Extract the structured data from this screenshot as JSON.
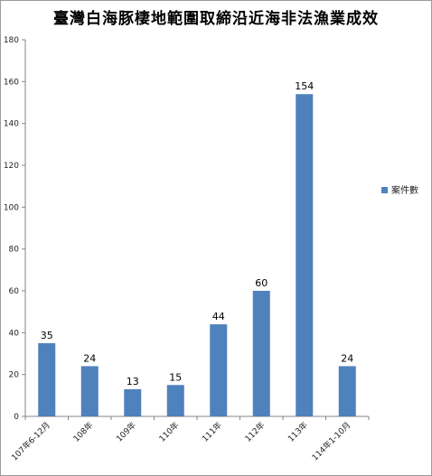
{
  "chart_data": {
    "type": "bar",
    "title": "臺灣白海豚棲地範圍取締沿近海非法漁業成效",
    "categories": [
      "107年6-12月",
      "108年",
      "109年",
      "110年",
      "111年",
      "112年",
      "113年",
      "114年1-10月"
    ],
    "series": [
      {
        "name": "案件數",
        "values": [
          35,
          24,
          13,
          15,
          44,
          60,
          154,
          24
        ],
        "color": "#4f81bd"
      }
    ],
    "ylim": [
      0,
      180
    ],
    "yticks": [
      0,
      20,
      40,
      60,
      80,
      100,
      120,
      140,
      160,
      180
    ],
    "grid": false,
    "legend": "right",
    "show_data_labels": true
  }
}
